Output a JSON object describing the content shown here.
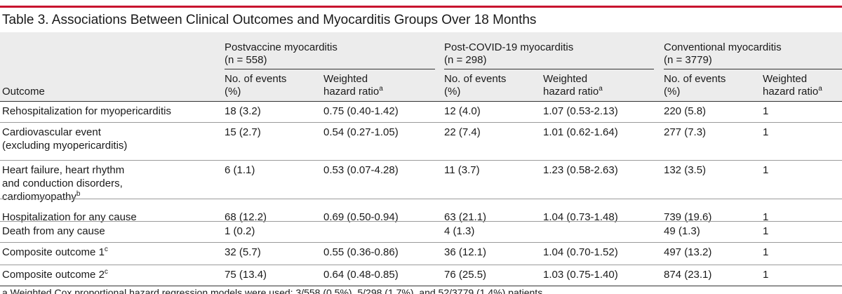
{
  "title": "Table 3. Associations Between Clinical Outcomes and Myocarditis Groups Over 18 Months",
  "columns": {
    "outcome": "Outcome",
    "groups": [
      {
        "name_line1": "Postvaccine myocarditis",
        "name_line2": "(n = 558)"
      },
      {
        "name_line1": "Post-COVID-19 myocarditis",
        "name_line2": "(n = 298)"
      },
      {
        "name_line1": "Conventional myocarditis",
        "name_line2": "(n = 3779)"
      }
    ],
    "events_line1": "No. of events",
    "events_line2": "(%)",
    "hr_line1": "Weighted",
    "hr_line2": "hazard ratio",
    "hr_sup": "a"
  },
  "rows": [
    {
      "lines": [
        "Rehospitalization for myopericarditis"
      ],
      "sup": "",
      "values": [
        "18 (3.2)",
        "0.75 (0.40-1.42)",
        "12 (4.0)",
        "1.07 (0.53-2.13)",
        "220 (5.8)",
        "1"
      ]
    },
    {
      "lines": [
        "Cardiovascular event",
        "(excluding myopericarditis)"
      ],
      "sup": "",
      "values": [
        "15 (2.7)",
        "0.54 (0.27-1.05)",
        "22 (7.4)",
        "1.01 (0.62-1.64)",
        "277 (7.3)",
        "1"
      ]
    },
    {
      "lines": [
        "Heart failure, heart rhythm",
        "and conduction disorders,",
        "cardiomyopathy"
      ],
      "sup": "b",
      "values": [
        "6 (1.1)",
        "0.53 (0.07-4.28)",
        "11 (3.7)",
        "1.23 (0.58-2.63)",
        "132 (3.5)",
        "1"
      ]
    },
    {
      "lines": [
        "Hospitalization for any cause"
      ],
      "sup": "",
      "values": [
        "68 (12.2)",
        "0.69 (0.50-0.94)",
        "63 (21.1)",
        "1.04 (0.73-1.48)",
        "739 (19.6)",
        "1"
      ]
    },
    {
      "lines": [
        "Death from any cause"
      ],
      "sup": "",
      "values": [
        "1 (0.2)",
        "",
        "4 (1.3)",
        "",
        "49 (1.3)",
        "1"
      ]
    },
    {
      "lines": [
        "Composite outcome 1"
      ],
      "sup": "c",
      "values": [
        "32 (5.7)",
        "0.55 (0.36-0.86)",
        "36 (12.1)",
        "1.04 (0.70-1.52)",
        "497 (13.2)",
        "1"
      ]
    },
    {
      "lines": [
        "Composite outcome 2"
      ],
      "sup": "c",
      "values": [
        "75 (13.4)",
        "0.64 (0.48-0.85)",
        "76 (25.5)",
        "1.03 (0.75-1.40)",
        "874 (23.1)",
        "1"
      ]
    }
  ],
  "footnote": "a Weighted Cox proportional hazard regression models were used; 3/558 (0.5%), 5/298 (1.7%), and 52/3779 (1.4%) patients."
}
